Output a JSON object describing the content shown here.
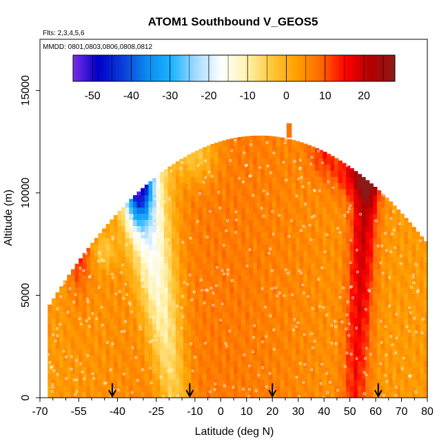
{
  "chart_data": {
    "type": "heatmap",
    "title": "ATOM1 Southbound V_GEOS5",
    "flights_label": "Flts: 2,3,4,5,6",
    "dates_label": "MMDD: 0801,0803,0806,0808,0812",
    "xlabel": "Latitude (deg N)",
    "ylabel": "Altitude (m)",
    "xlim": [
      -70,
      80
    ],
    "ylim": [
      0,
      17500
    ],
    "x_ticks": [
      -70,
      -55,
      -40,
      -25,
      -10,
      0,
      10,
      20,
      30,
      40,
      50,
      60,
      70,
      80
    ],
    "x_tick_labels": [
      "-70",
      "-55",
      "-40",
      "-25",
      "-10",
      "0",
      "10",
      "20",
      "30",
      "40",
      "50",
      "60",
      "70",
      "80"
    ],
    "y_ticks": [
      0,
      5000,
      10000,
      15000
    ],
    "y_tick_labels": [
      "0",
      "5000",
      "10000",
      "15000"
    ],
    "colorbar": {
      "min": -55,
      "max": 28,
      "ticks": [
        -50,
        -40,
        -30,
        -20,
        -10,
        0,
        10,
        20
      ],
      "tick_labels": [
        "-50",
        "-40",
        "-30",
        "-20",
        "-10",
        "0",
        "10",
        "20"
      ],
      "colors": [
        "#7a2ee8",
        "#0000c8",
        "#0a3cd8",
        "#0a8cf0",
        "#1eb4ff",
        "#a8dcff",
        "#ffffff",
        "#fff3b0",
        "#ffc83c",
        "#ffa000",
        "#ff6a00",
        "#ff0000",
        "#b40000",
        "#8b1a1a"
      ]
    },
    "arrows_latitude": [
      -42,
      -12,
      20,
      61
    ],
    "field_description_latitude_features": {
      "southern_hemisphere_jet_core_lat": -32,
      "southern_hemisphere_jet_core_alt_m": 10500,
      "southern_hemisphere_jet_min_value": -50,
      "northern_hemisphere_max_lat": 53,
      "northern_hemisphere_max_value": 22
    }
  }
}
